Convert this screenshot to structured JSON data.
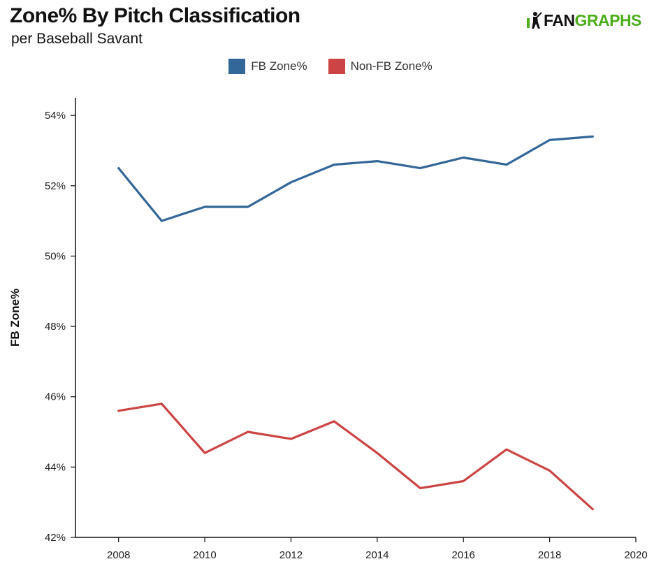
{
  "header": {
    "title": "Zone% By Pitch Classification",
    "subtitle": "per Baseball Savant"
  },
  "logo": {
    "text_left": "FAN",
    "text_right": "GRAPHS",
    "brand_color": "#4caf1a"
  },
  "chart_data": {
    "type": "line",
    "title": "Zone% By Pitch Classification",
    "subtitle": "per Baseball Savant",
    "xlabel": "",
    "ylabel": "FB Zone%",
    "xlim": [
      2007,
      2020
    ],
    "ylim": [
      42,
      54.5
    ],
    "x_ticks": [
      2008,
      2010,
      2012,
      2014,
      2016,
      2018,
      2020
    ],
    "y_ticks": [
      42,
      44,
      46,
      48,
      50,
      52,
      54
    ],
    "y_tick_suffix": "%",
    "legend_position": "top-center",
    "grid": false,
    "x": [
      2008,
      2009,
      2010,
      2011,
      2012,
      2013,
      2014,
      2015,
      2016,
      2017,
      2018,
      2019
    ],
    "series": [
      {
        "name": "FB Zone%",
        "color": "#336699",
        "values": [
          52.5,
          51.0,
          51.4,
          51.4,
          52.1,
          52.6,
          52.7,
          52.5,
          52.8,
          52.6,
          53.3,
          53.4
        ]
      },
      {
        "name": "Non-FB Zone%",
        "color": "#cc4444",
        "values": [
          45.6,
          45.8,
          44.4,
          45.0,
          44.8,
          45.3,
          44.4,
          43.4,
          43.6,
          44.5,
          43.9,
          42.8
        ]
      }
    ]
  }
}
